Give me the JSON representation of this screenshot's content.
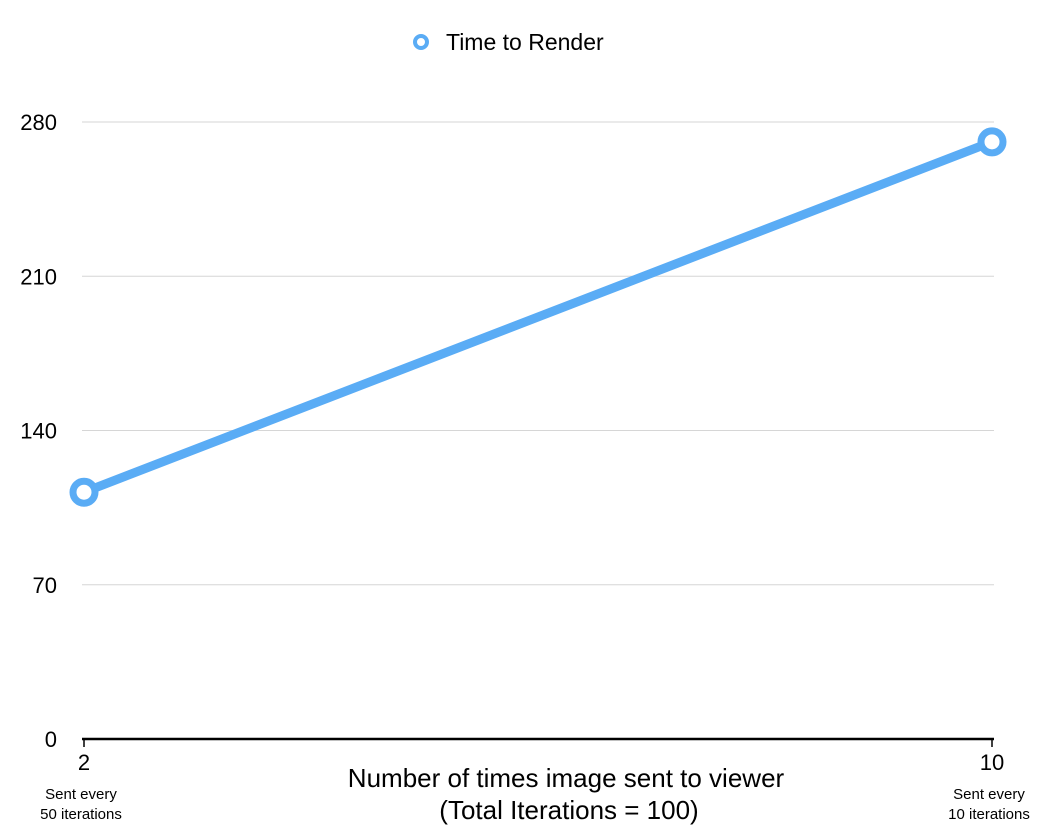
{
  "chart_data": {
    "type": "line",
    "x": [
      2,
      10
    ],
    "x_tick_sublabels": [
      [
        "Sent every",
        "50 iterations"
      ],
      [
        "Sent every",
        "10 iterations"
      ]
    ],
    "series": [
      {
        "name": "Time to Render",
        "values": [
          112,
          271
        ],
        "color": "#5aacf5"
      }
    ],
    "ylim": [
      0,
      280
    ],
    "yticks": [
      0,
      70,
      140,
      210,
      280
    ],
    "xlabel_lines": [
      "Number of times image sent to viewer",
      "(Total Iterations = 100)"
    ],
    "grid": true,
    "legend": "top-center"
  }
}
